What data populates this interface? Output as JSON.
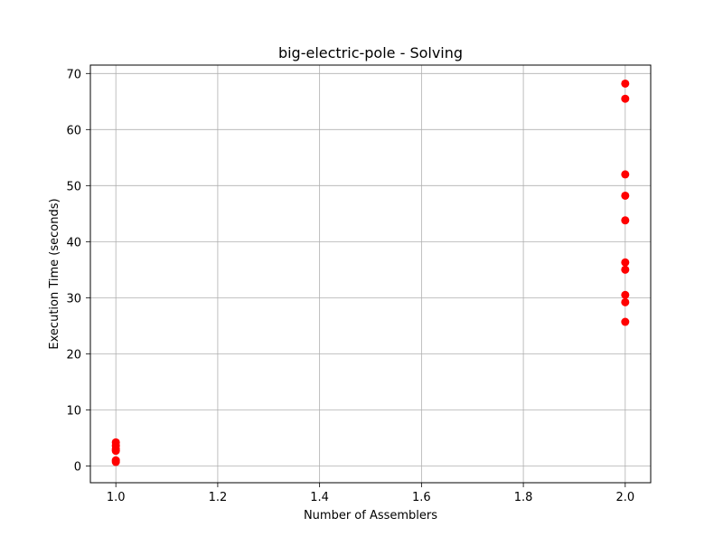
{
  "chart_data": {
    "type": "scatter",
    "title": "big-electric-pole - Solving",
    "xlabel": "Number of Assemblers",
    "ylabel": "Execution Time (seconds)",
    "xlim": [
      0.95,
      2.05
    ],
    "ylim": [
      -3.0,
      71.5
    ],
    "xticks": [
      1.0,
      1.2,
      1.4,
      1.6,
      1.8,
      2.0
    ],
    "xtick_labels": [
      "1.0",
      "1.2",
      "1.4",
      "1.6",
      "1.8",
      "2.0"
    ],
    "yticks": [
      0,
      10,
      20,
      30,
      40,
      50,
      60,
      70
    ],
    "ytick_labels": [
      "0",
      "10",
      "20",
      "30",
      "40",
      "50",
      "60",
      "70"
    ],
    "grid": true,
    "legend": null,
    "colors": {
      "points": "#ff0000",
      "grid": "#b0b0b0",
      "axes": "#000000"
    },
    "series": [
      {
        "points": [
          {
            "x": 1,
            "y": 4.2
          },
          {
            "x": 1,
            "y": 3.6
          },
          {
            "x": 1,
            "y": 3.0
          },
          {
            "x": 1,
            "y": 2.7
          },
          {
            "x": 1,
            "y": 1.0
          },
          {
            "x": 1,
            "y": 0.7
          },
          {
            "x": 2,
            "y": 68.2
          },
          {
            "x": 2,
            "y": 65.5
          },
          {
            "x": 2,
            "y": 52.0
          },
          {
            "x": 2,
            "y": 48.2
          },
          {
            "x": 2,
            "y": 43.8
          },
          {
            "x": 2,
            "y": 36.3
          },
          {
            "x": 2,
            "y": 35.0
          },
          {
            "x": 2,
            "y": 30.5
          },
          {
            "x": 2,
            "y": 29.2
          },
          {
            "x": 2,
            "y": 25.7
          }
        ]
      }
    ]
  }
}
